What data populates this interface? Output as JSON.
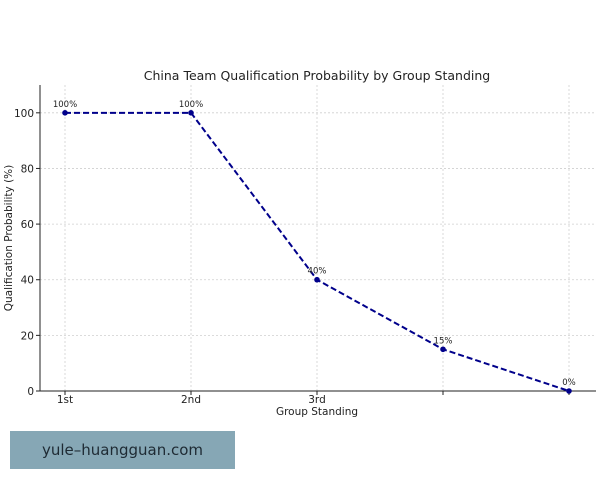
{
  "chart_data": {
    "type": "line",
    "title": "China Team Qualification Probability by Group Standing",
    "xlabel": "Group Standing",
    "ylabel": "Qualification Probability (%)",
    "categories": [
      "1st",
      "2nd",
      "3rd",
      "",
      ""
    ],
    "series": [
      {
        "values": [
          100,
          100,
          40,
          15,
          0
        ],
        "labels": [
          "100%",
          "100%",
          "40%",
          "15%",
          "0%"
        ],
        "color": "#00008b"
      }
    ],
    "ylim": [
      0,
      110
    ],
    "yticks": [
      0,
      20,
      40,
      60,
      80,
      100
    ],
    "grid": true
  },
  "watermark": {
    "text": "yule–huangguan.com"
  }
}
